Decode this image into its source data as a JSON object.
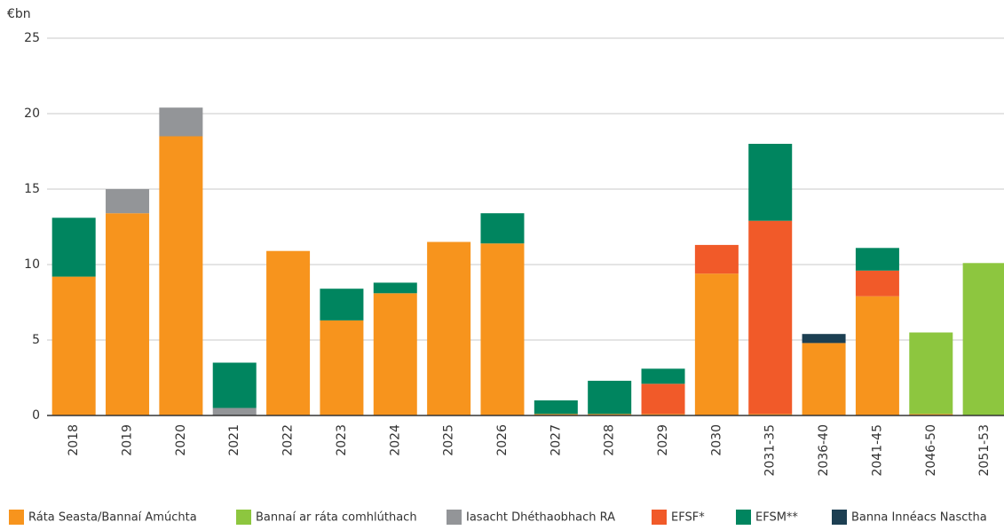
{
  "chart_data": {
    "type": "stacked_bar",
    "y_label": "€bn",
    "categories": [
      "2018",
      "2019",
      "2020",
      "2021",
      "2022",
      "2023",
      "2024",
      "2025",
      "2026",
      "2027",
      "2028",
      "2029",
      "2030",
      "2031-35",
      "2036-40",
      "2041-45",
      "2046-50",
      "2051-53"
    ],
    "series": [
      {
        "name": "Ráta Seasta/Bannaí Amúchta",
        "color": "#f7941d",
        "values": [
          9.2,
          13.4,
          18.5,
          0,
          10.9,
          6.3,
          8.1,
          11.5,
          11.4,
          0.1,
          0.1,
          0.1,
          9.4,
          0.1,
          4.8,
          7.9,
          0.1,
          0
        ]
      },
      {
        "name": "Bannaí ar ráta comhlúthach",
        "color": "#8dc63f",
        "values": [
          0,
          0,
          0,
          0,
          0,
          0,
          0,
          0,
          0,
          0,
          0,
          0,
          0,
          0,
          0,
          0,
          5.4,
          10.1
        ]
      },
      {
        "name": "Iasacht Dhéthaobhach RA",
        "color": "#939598",
        "values": [
          0,
          1.6,
          1.9,
          0.5,
          0,
          0,
          0,
          0,
          0,
          0,
          0,
          0,
          0,
          0,
          0,
          0,
          0,
          0
        ]
      },
      {
        "name": "EFSF*",
        "color": "#f15a29",
        "values": [
          0,
          0,
          0,
          0,
          0,
          0,
          0,
          0,
          0,
          0,
          0,
          2.0,
          1.9,
          12.8,
          0,
          1.7,
          0,
          0
        ]
      },
      {
        "name": "EFSM**",
        "color": "#00855f",
        "values": [
          3.9,
          0,
          0,
          3.0,
          0,
          2.1,
          0.7,
          0,
          2.0,
          0.9,
          2.2,
          1.0,
          0,
          5.1,
          0,
          1.5,
          0,
          0
        ]
      },
      {
        "name": "Banna Innéacs Nasctha",
        "color": "#1c3f52",
        "values": [
          0,
          0,
          0,
          0,
          0,
          0,
          0,
          0,
          0,
          0,
          0,
          0,
          0,
          0,
          0.6,
          0,
          0,
          0
        ]
      }
    ],
    "ylim": [
      0,
      25
    ],
    "yticks": [
      0,
      5,
      10,
      15,
      20,
      25
    ],
    "grid": true,
    "legend": "bottom"
  }
}
